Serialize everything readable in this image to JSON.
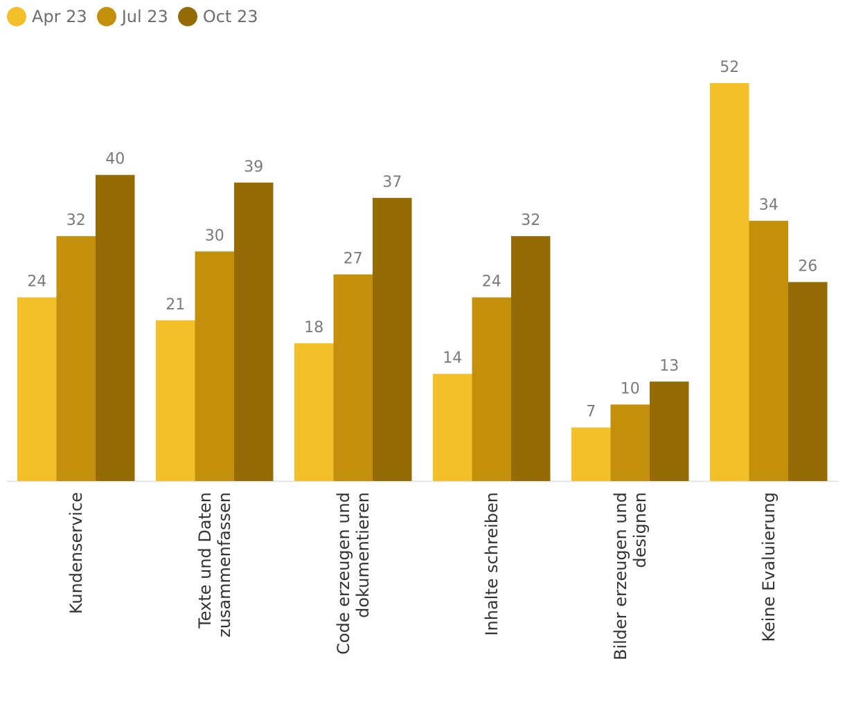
{
  "chart_data": {
    "type": "bar",
    "title": "",
    "xlabel": "",
    "ylabel": "",
    "ylim": [
      0,
      56
    ],
    "grid": false,
    "legend_position": "top-left",
    "categories": [
      [
        "Kundenservice"
      ],
      [
        "Texte und Daten",
        "zusammenfassen"
      ],
      [
        "Code erzeugen und",
        "dokumentieren"
      ],
      [
        "Inhalte schreiben"
      ],
      [
        "Bilder erzeugen und",
        "designen"
      ],
      [
        "Keine Evaluierung"
      ]
    ],
    "series": [
      {
        "name": "Apr 23",
        "color": "#f4c029",
        "values": [
          24,
          21,
          18,
          14,
          7,
          52
        ]
      },
      {
        "name": "Jul 23",
        "color": "#c48f0b",
        "values": [
          32,
          30,
          27,
          24,
          10,
          34
        ]
      },
      {
        "name": "Oct 23",
        "color": "#946b05",
        "values": [
          40,
          39,
          37,
          32,
          13,
          26
        ]
      }
    ]
  }
}
